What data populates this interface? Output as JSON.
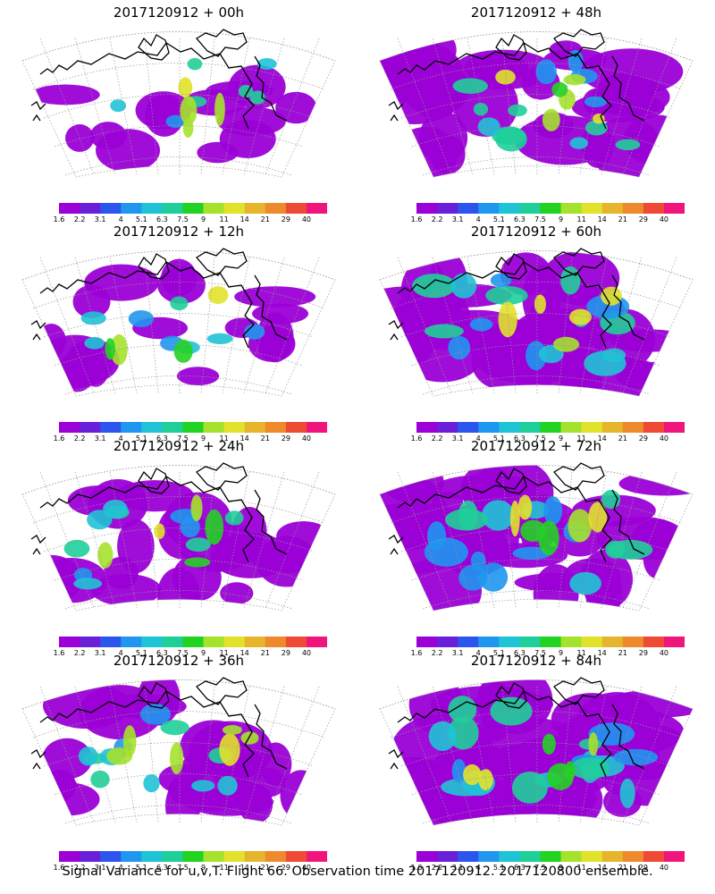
{
  "panels": [
    {
      "title": "2017120912 + 00h",
      "spread": 0.18,
      "hot": 0.15
    },
    {
      "title": "2017120912 + 48h",
      "spread": 0.62,
      "hot": 0.35
    },
    {
      "title": "2017120912 + 12h",
      "spread": 0.3,
      "hot": 0.2
    },
    {
      "title": "2017120912 + 60h",
      "spread": 0.75,
      "hot": 0.3
    },
    {
      "title": "2017120912 + 24h",
      "spread": 0.42,
      "hot": 0.3
    },
    {
      "title": "2017120912 + 72h",
      "spread": 0.85,
      "hot": 0.35
    },
    {
      "title": "2017120912 + 36h",
      "spread": 0.5,
      "hot": 0.35
    },
    {
      "title": "2017120912 + 84h",
      "spread": 0.95,
      "hot": 0.35
    }
  ],
  "colorbar": {
    "labels": [
      "1.6",
      "2.2",
      "3.1",
      "4",
      "5.1",
      "6.3",
      "7.5",
      "9",
      "11",
      "14",
      "21",
      "29",
      "40"
    ],
    "colors": [
      "#9b00d6",
      "#6a1fd8",
      "#2b55ee",
      "#1f96f0",
      "#1fc3d6",
      "#1ecf9a",
      "#22d322",
      "#a5e22b",
      "#e2e22b",
      "#e6b52b",
      "#ee8a2b",
      "#ee4a34",
      "#f0157a"
    ]
  },
  "caption": "Signal Variance for u,v,T. Flight 66. Observation time 2017120912. 2017120800 ensemble."
}
